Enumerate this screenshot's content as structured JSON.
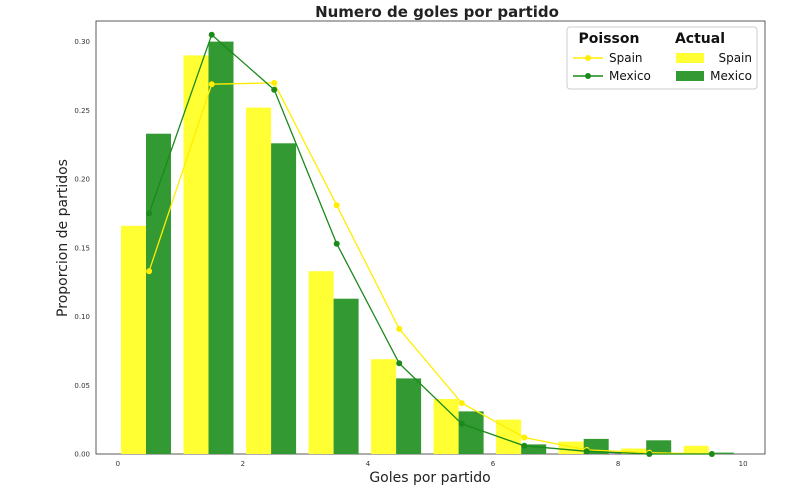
{
  "chart_data": {
    "type": "bar",
    "title": "Numero de goles por partido",
    "xlabel": "Goles por partido",
    "ylabel": "Proporcion de partidos",
    "xlim": [
      -0.35,
      10.35
    ],
    "ylim": [
      0,
      0.315
    ],
    "xticks": [
      "0",
      "2",
      "4",
      "6",
      "8",
      "10"
    ],
    "yticks": [
      "0.00",
      "0.05",
      "0.10",
      "0.15",
      "0.20",
      "0.25",
      "0.30"
    ],
    "grid": false,
    "legend_position": "top-right",
    "legend": {
      "poisson_header": "Poisson",
      "actual_header": "Actual",
      "poisson_spain": "Spain",
      "poisson_mexico": "Mexico",
      "actual_spain": "Spain",
      "actual_mexico": "Mexico"
    },
    "colors": {
      "spain_bar": "#ffff33",
      "mexico_bar": "#339933",
      "spain_line": "#ffee00",
      "mexico_line": "#1a8a1a"
    },
    "bars": {
      "categories": [
        0,
        1,
        2,
        3,
        4,
        5,
        6,
        7,
        8,
        9
      ],
      "series": [
        {
          "name": "Spain",
          "values": [
            0.166,
            0.29,
            0.252,
            0.133,
            0.069,
            0.04,
            0.025,
            0.009,
            0.004,
            0.006
          ]
        },
        {
          "name": "Mexico",
          "values": [
            0.233,
            0.3,
            0.226,
            0.113,
            0.055,
            0.031,
            0.007,
            0.011,
            0.01,
            0.001
          ]
        }
      ]
    },
    "poisson": {
      "x": [
        0.5,
        1.5,
        2.5,
        3.5,
        4.5,
        5.5,
        6.5,
        7.5,
        8.5,
        9.5
      ],
      "series": [
        {
          "name": "Spain",
          "values": [
            0.133,
            0.269,
            0.27,
            0.181,
            0.091,
            0.037,
            0.012,
            0.003,
            0.001,
            0.0
          ]
        },
        {
          "name": "Mexico",
          "values": [
            0.175,
            0.305,
            0.265,
            0.153,
            0.066,
            0.022,
            0.006,
            0.002,
            0.0,
            0.0
          ]
        }
      ]
    }
  }
}
